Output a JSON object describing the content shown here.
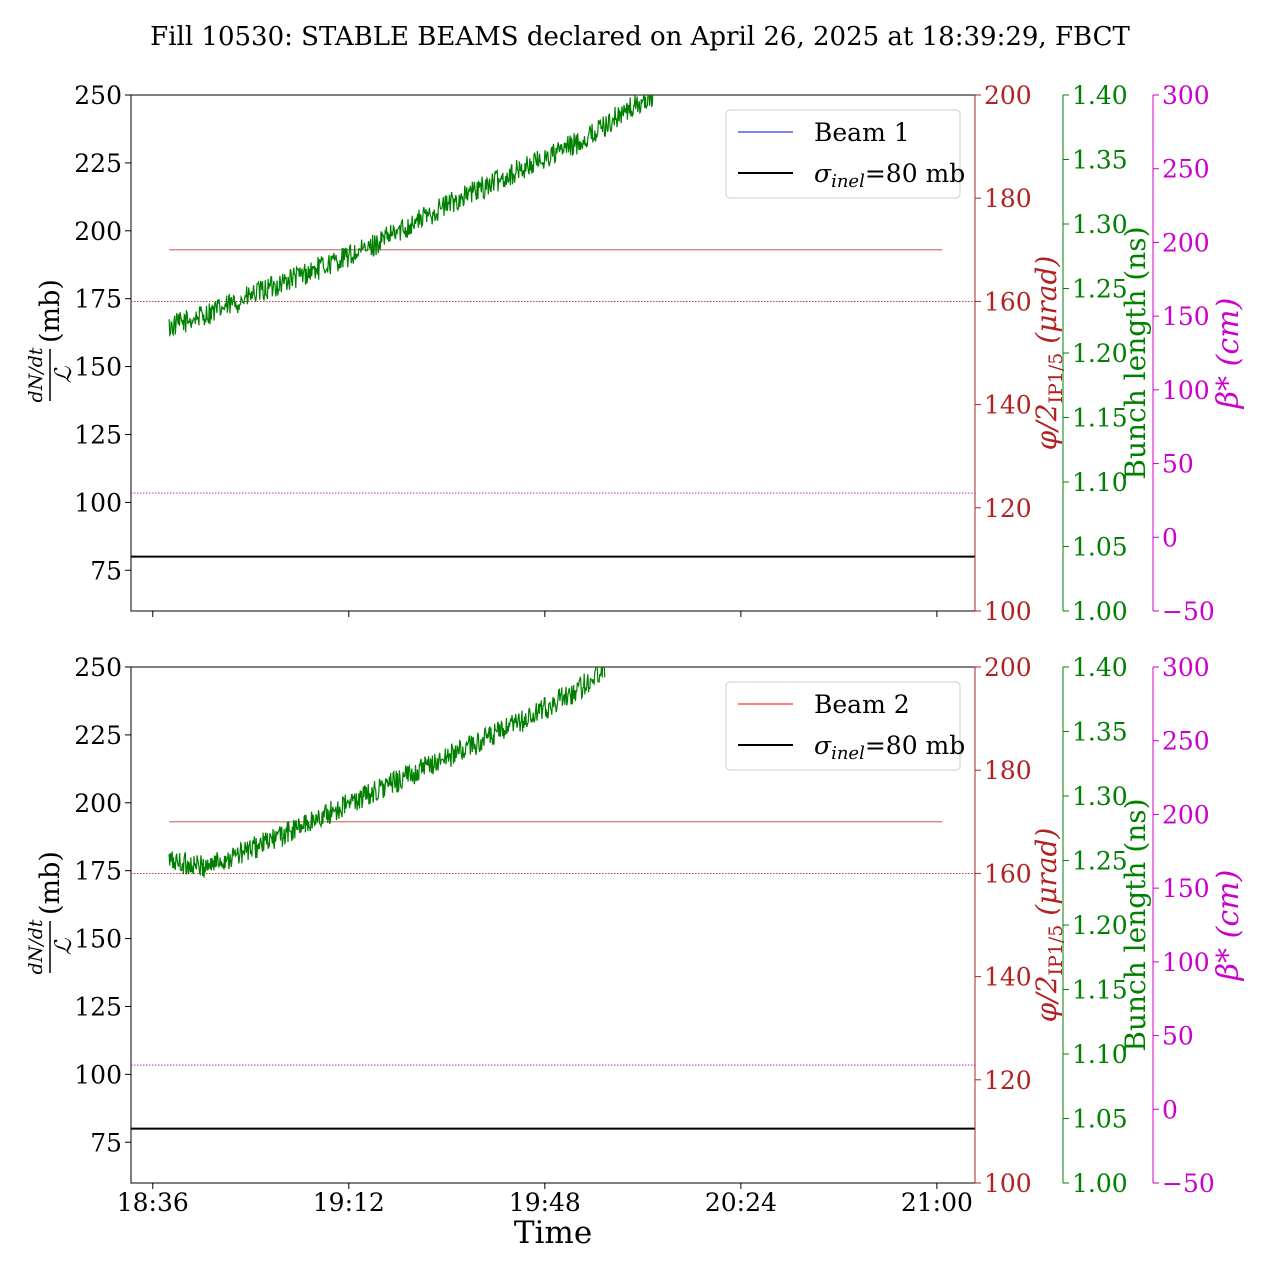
{
  "title": "Fill 10530: STABLE BEAMS declared on April 26, 2025 at 18:39:29, FBCT",
  "colors": {
    "left_axis": "#000000",
    "crossing_axis": "#b22222",
    "bunch_axis": "#008000",
    "beta_axis": "#cc00cc",
    "beam1": "#0000ff",
    "beam2": "#ff0000",
    "sigma_line": "#000000",
    "bunch_trace": "#008000"
  },
  "chart_data": [
    {
      "type": "line",
      "panel": "top",
      "xlabel": "",
      "x_ticks": [
        "18:36",
        "19:12",
        "19:48",
        "20:24",
        "21:00"
      ],
      "x_range": [
        "18:32",
        "21:07"
      ],
      "axes": {
        "left": {
          "label_num": "dN/dt",
          "label_den": "ℒ",
          "label_unit": "(mb)",
          "range": [
            60,
            250
          ],
          "ticks": [
            "75",
            "100",
            "125",
            "150",
            "175",
            "200",
            "225",
            "250"
          ]
        },
        "crossing": {
          "label": "φ/2",
          "label_sub": "IP1/5",
          "label_unit": "(μrad)",
          "range": [
            100,
            200
          ],
          "ticks": [
            "100",
            "120",
            "140",
            "160",
            "180",
            "200"
          ]
        },
        "bunch": {
          "label": "Bunch length (ns)",
          "range": [
            1.0,
            1.4
          ],
          "ticks": [
            "1.00",
            "1.05",
            "1.10",
            "1.15",
            "1.20",
            "1.25",
            "1.30",
            "1.35",
            "1.40"
          ]
        },
        "beta": {
          "label": "β* (cm)",
          "range": [
            -50,
            300
          ],
          "ticks": [
            "−50",
            "0",
            "50",
            "100",
            "150",
            "200",
            "250",
            "300"
          ]
        }
      },
      "legend": {
        "position": "top-right",
        "entries": [
          {
            "label": "Beam 1",
            "color": "#0000ff"
          },
          {
            "label": "σinel=80 mb",
            "color": "#000000"
          }
        ]
      },
      "series": [
        {
          "name": "σinel=80 mb",
          "axis": "left",
          "style": "solid",
          "x": [
            "18:32",
            "21:07"
          ],
          "y": [
            80,
            80
          ]
        },
        {
          "axis": "crossing",
          "style": "solid-thin",
          "x": [
            "18:39",
            "21:01"
          ],
          "y": [
            170,
            170
          ]
        },
        {
          "axis": "crossing",
          "style": "dotted",
          "x": [
            "18:32",
            "21:07"
          ],
          "y": [
            160,
            160
          ]
        },
        {
          "axis": "beta",
          "style": "dotted",
          "x": [
            "18:32",
            "21:07"
          ],
          "y": [
            30,
            30
          ]
        },
        {
          "axis": "bunch",
          "style": "noisy",
          "x": [
            "18:39",
            "18:49",
            "19:00",
            "19:15",
            "19:30",
            "19:45",
            "19:55",
            "20:02",
            "20:08"
          ],
          "y": [
            1.22,
            1.235,
            1.255,
            1.28,
            1.315,
            1.345,
            1.365,
            1.385,
            1.4
          ]
        }
      ]
    },
    {
      "type": "line",
      "panel": "bottom",
      "xlabel": "Time",
      "x_ticks": [
        "18:36",
        "19:12",
        "19:48",
        "20:24",
        "21:00"
      ],
      "x_range": [
        "18:32",
        "21:07"
      ],
      "axes": {
        "left": {
          "label_num": "dN/dt",
          "label_den": "ℒ",
          "label_unit": "(mb)",
          "range": [
            60,
            250
          ],
          "ticks": [
            "75",
            "100",
            "125",
            "150",
            "175",
            "200",
            "225",
            "250"
          ]
        },
        "crossing": {
          "label": "φ/2",
          "label_sub": "IP1/5",
          "label_unit": "(μrad)",
          "range": [
            100,
            200
          ],
          "ticks": [
            "100",
            "120",
            "140",
            "160",
            "180",
            "200"
          ]
        },
        "bunch": {
          "label": "Bunch length (ns)",
          "range": [
            1.0,
            1.4
          ],
          "ticks": [
            "1.00",
            "1.05",
            "1.10",
            "1.15",
            "1.20",
            "1.25",
            "1.30",
            "1.35",
            "1.40"
          ]
        },
        "beta": {
          "label": "β* (cm)",
          "range": [
            -50,
            300
          ],
          "ticks": [
            "−50",
            "0",
            "50",
            "100",
            "150",
            "200",
            "250",
            "300"
          ]
        }
      },
      "legend": {
        "position": "top-right",
        "entries": [
          {
            "label": "Beam 2",
            "color": "#ff0000"
          },
          {
            "label": "σinel=80 mb",
            "color": "#000000"
          }
        ]
      },
      "series": [
        {
          "name": "σinel=80 mb",
          "axis": "left",
          "style": "solid",
          "x": [
            "18:32",
            "21:07"
          ],
          "y": [
            80,
            80
          ]
        },
        {
          "axis": "crossing",
          "style": "solid-thin",
          "x": [
            "18:39",
            "21:01"
          ],
          "y": [
            170,
            170
          ]
        },
        {
          "axis": "crossing",
          "style": "dotted",
          "x": [
            "18:32",
            "21:07"
          ],
          "y": [
            160,
            160
          ]
        },
        {
          "axis": "beta",
          "style": "dotted",
          "x": [
            "18:32",
            "21:07"
          ],
          "y": [
            30,
            30
          ]
        },
        {
          "axis": "bunch",
          "style": "noisy",
          "x": [
            "18:39",
            "18:45",
            "18:52",
            "19:00",
            "19:15",
            "19:30",
            "19:45",
            "19:55",
            "19:59"
          ],
          "y": [
            1.25,
            1.245,
            1.255,
            1.27,
            1.3,
            1.33,
            1.36,
            1.385,
            1.4
          ]
        }
      ]
    }
  ]
}
